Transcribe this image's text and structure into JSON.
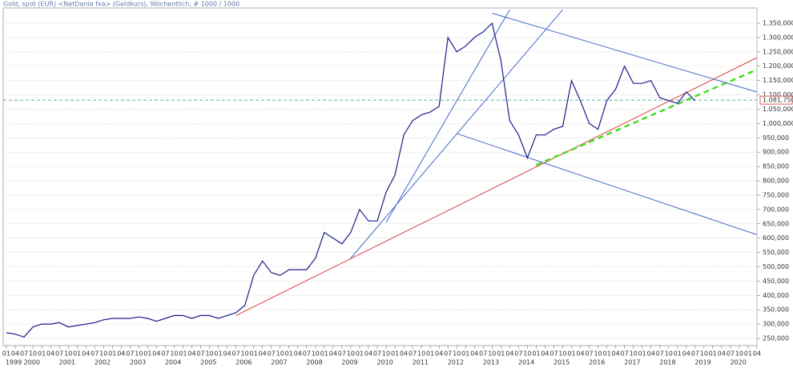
{
  "chart_data": {
    "type": "line",
    "title": "Gold, spot (EUR) <NetDania fxa> (Geldkurs), Wöchentlich, # 1000 / 1000",
    "x": [
      "1999-01",
      "1999-04",
      "1999-07",
      "1999-10",
      "2000-01",
      "2000-04",
      "2000-07",
      "2000-10",
      "2001-01",
      "2001-04",
      "2001-07",
      "2001-10",
      "2002-01",
      "2002-04",
      "2002-07",
      "2002-10",
      "2003-01",
      "2003-04",
      "2003-07",
      "2003-10",
      "2004-01",
      "2004-04",
      "2004-07",
      "2004-10",
      "2005-01",
      "2005-04",
      "2005-07",
      "2005-10",
      "2006-01",
      "2006-04",
      "2006-07",
      "2006-10",
      "2007-01",
      "2007-04",
      "2007-07",
      "2007-10",
      "2008-01",
      "2008-04",
      "2008-07",
      "2008-10",
      "2009-01",
      "2009-04",
      "2009-07",
      "2009-10",
      "2010-01",
      "2010-04",
      "2010-07",
      "2010-10",
      "2011-01",
      "2011-04",
      "2011-07",
      "2011-10",
      "2012-01",
      "2012-04",
      "2012-07",
      "2012-10",
      "2013-01",
      "2013-04",
      "2013-07",
      "2013-10",
      "2014-01",
      "2014-04",
      "2014-07",
      "2014-10",
      "2015-01",
      "2015-04",
      "2015-07",
      "2015-10",
      "2016-01",
      "2016-04",
      "2016-07",
      "2016-10",
      "2017-01",
      "2017-04",
      "2017-07",
      "2017-10",
      "2018-01",
      "2018-04",
      "2018-07"
    ],
    "series": [
      {
        "color": "#1c1c8c",
        "values": [
          270,
          265,
          255,
          290,
          300,
          300,
          305,
          290,
          295,
          300,
          305,
          315,
          320,
          320,
          320,
          325,
          320,
          310,
          320,
          330,
          330,
          320,
          330,
          330,
          320,
          330,
          340,
          365,
          470,
          520,
          480,
          470,
          490,
          490,
          490,
          530,
          620,
          600,
          580,
          620,
          700,
          660,
          660,
          760,
          820,
          960,
          1010,
          1030,
          1040,
          1060,
          1300,
          1250,
          1270,
          1300,
          1320,
          1350,
          1220,
          1010,
          960,
          880,
          960,
          960,
          980,
          990,
          1150,
          1080,
          1000,
          980,
          1080,
          1120,
          1200,
          1140,
          1140,
          1150,
          1090,
          1080,
          1070,
          1110,
          1080
        ]
      }
    ],
    "lines": [
      {
        "color": "#e04040",
        "style": "solid",
        "x": [
          "2005-07",
          "2020-04"
        ],
        "values": [
          330,
          1230
        ]
      },
      {
        "color": "#44dd22",
        "style": "dashed",
        "x": [
          "2014-01",
          "2020-04"
        ],
        "values": [
          855,
          1188
        ]
      },
      {
        "color": "#4466cc",
        "style": "solid",
        "x": [
          "2012-10",
          "2020-04"
        ],
        "values": [
          1385,
          1110
        ]
      },
      {
        "color": "#4466cc",
        "style": "solid",
        "x": [
          "2011-10",
          "2020-04"
        ],
        "values": [
          965,
          612
        ]
      },
      {
        "color": "#4466cc",
        "style": "solid",
        "x": [
          "2008-10",
          "2014-10"
        ],
        "values": [
          530,
          1397
        ]
      },
      {
        "color": "#4466cc",
        "style": "solid",
        "x": [
          "2009-10",
          "2013-04"
        ],
        "values": [
          655,
          1397
        ]
      }
    ],
    "hline": {
      "value": 1081.75,
      "label": "1.081,750",
      "color": "#3a8a8a"
    },
    "xlim": [
      "1999-01",
      "2020-04"
    ],
    "ylim": [
      225,
      1397.5
    ],
    "yticks": [
      {
        "value": 250,
        "label": "250,000"
      },
      {
        "value": 300,
        "label": "300,000"
      },
      {
        "value": 350,
        "label": "350,000"
      },
      {
        "value": 400,
        "label": "400,000"
      },
      {
        "value": 450,
        "label": "450,000"
      },
      {
        "value": 500,
        "label": "500,000"
      },
      {
        "value": 550,
        "label": "550,000"
      },
      {
        "value": 600,
        "label": "600,000"
      },
      {
        "value": 650,
        "label": "650,000"
      },
      {
        "value": 700,
        "label": "700,000"
      },
      {
        "value": 750,
        "label": "750,000"
      },
      {
        "value": 800,
        "label": "800,000"
      },
      {
        "value": 850,
        "label": "850,000"
      },
      {
        "value": 900,
        "label": "900,000"
      },
      {
        "value": 950,
        "label": "950,000"
      },
      {
        "value": 1000,
        "label": "1.000,000"
      },
      {
        "value": 1050,
        "label": "1.050,000"
      },
      {
        "value": 1100,
        "label": "1.100,000"
      },
      {
        "value": 1150,
        "label": "1.150,000"
      },
      {
        "value": 1200,
        "label": "1.200,000"
      },
      {
        "value": 1250,
        "label": "1.250,000"
      },
      {
        "value": 1300,
        "label": "1.300,000"
      },
      {
        "value": 1350,
        "label": "1.350,000"
      }
    ],
    "xticks": [
      {
        "value": "1999-01",
        "label": "01"
      },
      {
        "value": "1999-04",
        "label": "04"
      },
      {
        "value": "1999-07",
        "label": "07"
      },
      {
        "value": "1999-10",
        "label": "10"
      },
      {
        "value": "2000-01",
        "label": "01"
      },
      {
        "value": "2000-04",
        "label": "04"
      },
      {
        "value": "2000-07",
        "label": "07"
      },
      {
        "value": "2000-10",
        "label": "10"
      },
      {
        "value": "2001-01",
        "label": "01"
      },
      {
        "value": "2001-04",
        "label": "04"
      },
      {
        "value": "2001-07",
        "label": "07"
      },
      {
        "value": "2001-10",
        "label": "10"
      },
      {
        "value": "2002-01",
        "label": "01"
      },
      {
        "value": "2002-04",
        "label": "04"
      },
      {
        "value": "2002-07",
        "label": "07"
      },
      {
        "value": "2002-10",
        "label": "10"
      },
      {
        "value": "2003-01",
        "label": "01"
      },
      {
        "value": "2003-04",
        "label": "04"
      },
      {
        "value": "2003-07",
        "label": "07"
      },
      {
        "value": "2003-10",
        "label": "10"
      },
      {
        "value": "2004-01",
        "label": "01"
      },
      {
        "value": "2004-04",
        "label": "04"
      },
      {
        "value": "2004-07",
        "label": "07"
      },
      {
        "value": "2004-10",
        "label": "10"
      },
      {
        "value": "2005-01",
        "label": "01"
      },
      {
        "value": "2005-04",
        "label": "04"
      },
      {
        "value": "2005-07",
        "label": "07"
      },
      {
        "value": "2005-10",
        "label": "10"
      },
      {
        "value": "2006-01",
        "label": "01"
      },
      {
        "value": "2006-04",
        "label": "04"
      },
      {
        "value": "2006-07",
        "label": "07"
      },
      {
        "value": "2006-10",
        "label": "10"
      },
      {
        "value": "2007-01",
        "label": "01"
      },
      {
        "value": "2007-04",
        "label": "04"
      },
      {
        "value": "2007-07",
        "label": "07"
      },
      {
        "value": "2007-10",
        "label": "10"
      },
      {
        "value": "2008-01",
        "label": "01"
      },
      {
        "value": "2008-04",
        "label": "04"
      },
      {
        "value": "2008-07",
        "label": "07"
      },
      {
        "value": "2008-10",
        "label": "10"
      },
      {
        "value": "2009-01",
        "label": "01"
      },
      {
        "value": "2009-04",
        "label": "04"
      },
      {
        "value": "2009-07",
        "label": "07"
      },
      {
        "value": "2009-10",
        "label": "10"
      },
      {
        "value": "2010-01",
        "label": "01"
      },
      {
        "value": "2010-04",
        "label": "04"
      },
      {
        "value": "2010-07",
        "label": "07"
      },
      {
        "value": "2010-10",
        "label": "10"
      },
      {
        "value": "2011-01",
        "label": "01"
      },
      {
        "value": "2011-04",
        "label": "04"
      },
      {
        "value": "2011-07",
        "label": "07"
      },
      {
        "value": "2011-10",
        "label": "10"
      },
      {
        "value": "2012-01",
        "label": "01"
      },
      {
        "value": "2012-04",
        "label": "04"
      },
      {
        "value": "2012-07",
        "label": "07"
      },
      {
        "value": "2012-10",
        "label": "10"
      },
      {
        "value": "2013-01",
        "label": "01"
      },
      {
        "value": "2013-04",
        "label": "04"
      },
      {
        "value": "2013-07",
        "label": "07"
      },
      {
        "value": "2013-10",
        "label": "10"
      },
      {
        "value": "2014-01",
        "label": "01"
      },
      {
        "value": "2014-04",
        "label": "04"
      },
      {
        "value": "2014-07",
        "label": "07"
      },
      {
        "value": "2014-10",
        "label": "10"
      },
      {
        "value": "2015-01",
        "label": "01"
      },
      {
        "value": "2015-04",
        "label": "04"
      },
      {
        "value": "2015-07",
        "label": "07"
      },
      {
        "value": "2015-10",
        "label": "10"
      },
      {
        "value": "2016-01",
        "label": "01"
      },
      {
        "value": "2016-04",
        "label": "04"
      },
      {
        "value": "2016-07",
        "label": "07"
      },
      {
        "value": "2016-10",
        "label": "10"
      },
      {
        "value": "2017-01",
        "label": "01"
      },
      {
        "value": "2017-04",
        "label": "04"
      },
      {
        "value": "2017-07",
        "label": "07"
      },
      {
        "value": "2017-10",
        "label": "10"
      },
      {
        "value": "2018-01",
        "label": "01"
      },
      {
        "value": "2018-04",
        "label": "04"
      },
      {
        "value": "2018-07",
        "label": "07"
      },
      {
        "value": "2018-10",
        "label": "10"
      },
      {
        "value": "2019-01",
        "label": "01"
      },
      {
        "value": "2019-04",
        "label": "04"
      },
      {
        "value": "2019-07",
        "label": "07"
      },
      {
        "value": "2019-10",
        "label": "10"
      },
      {
        "value": "2020-01",
        "label": "01"
      },
      {
        "value": "2020-04",
        "label": "04"
      }
    ],
    "years": [
      1999,
      2000,
      2001,
      2002,
      2003,
      2004,
      2005,
      2006,
      2007,
      2008,
      2009,
      2010,
      2011,
      2012,
      2013,
      2014,
      2015,
      2016,
      2017,
      2018,
      2019,
      2020
    ],
    "grid": true
  }
}
